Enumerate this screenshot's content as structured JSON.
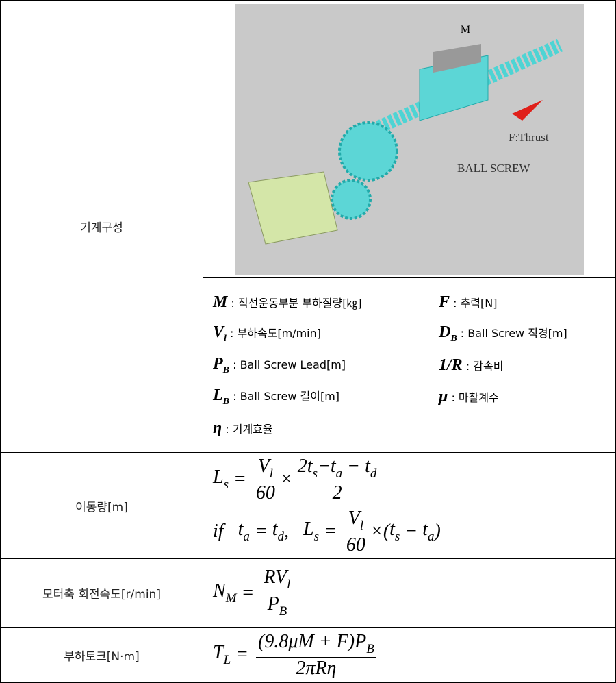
{
  "rows": [
    {
      "label": "기계구성",
      "illustration": {
        "mass_label": "M",
        "force_label": "F:Thrust",
        "mechanism_label": "BALL SCREW"
      },
      "legend": [
        [
          {
            "base": "M",
            "desc": " : 직선운동부분 부하질량[㎏]"
          },
          {
            "base": "F",
            "desc": " : 추력[N]"
          }
        ],
        [
          {
            "base": "V",
            "sub": "l",
            "desc": " : 부하속도[m/min]"
          },
          {
            "base": "D",
            "sub": "B",
            "desc": " : Ball Screw 직경[m]"
          }
        ],
        [
          {
            "base": "P",
            "sub": "B",
            "desc": " : Ball Screw Lead[m]"
          },
          {
            "base": "1/R",
            "desc": " : 감속비"
          }
        ],
        [
          {
            "base": "L",
            "sub": "B",
            "desc": " : Ball Screw 길이[m]"
          },
          {
            "base": "μ",
            "desc": " : 마찰계수"
          }
        ],
        [
          {
            "base": "η",
            "desc": " : 기계효율"
          }
        ]
      ]
    },
    {
      "label": "이동량[m]",
      "formulas": [
        [
          {
            "base": "L",
            "sub": "s"
          },
          " = ",
          {
            "num": [
              {
                "base": "V",
                "sub": "l"
              }
            ],
            "den": [
              "60"
            ]
          },
          "×",
          {
            "num": [
              "2",
              {
                "base": "t",
                "sub": "s"
              },
              "−",
              {
                "base": "t",
                "sub": "a"
              },
              " − ",
              {
                "base": "t",
                "sub": "d"
              }
            ],
            "den": [
              "2"
            ]
          }
        ],
        [
          "if   ",
          {
            "base": "t",
            "sub": "a"
          },
          " = ",
          {
            "base": "t",
            "sub": "d"
          },
          ",   ",
          {
            "base": "L",
            "sub": "s"
          },
          " = ",
          {
            "num": [
              {
                "base": "V",
                "sub": "l"
              }
            ],
            "den": [
              "60"
            ]
          },
          "×(",
          {
            "base": "t",
            "sub": "s"
          },
          " − ",
          {
            "base": "t",
            "sub": "a"
          },
          ")"
        ]
      ]
    },
    {
      "label": "모터축 회전속도[r/min]",
      "formulas": [
        [
          {
            "base": "N",
            "sub": "M"
          },
          " = ",
          {
            "num": [
              "R",
              {
                "base": "V",
                "sub": "l"
              }
            ],
            "den": [
              {
                "base": "P",
                "sub": "B"
              }
            ]
          }
        ]
      ]
    },
    {
      "label": "부하토크[N·m]",
      "formulas": [
        [
          {
            "base": "T",
            "sub": "L"
          },
          " = ",
          {
            "num": [
              "(9.8μM + F)",
              {
                "base": "P",
                "sub": "B"
              }
            ],
            "den": [
              "2πRη"
            ]
          }
        ]
      ]
    }
  ]
}
